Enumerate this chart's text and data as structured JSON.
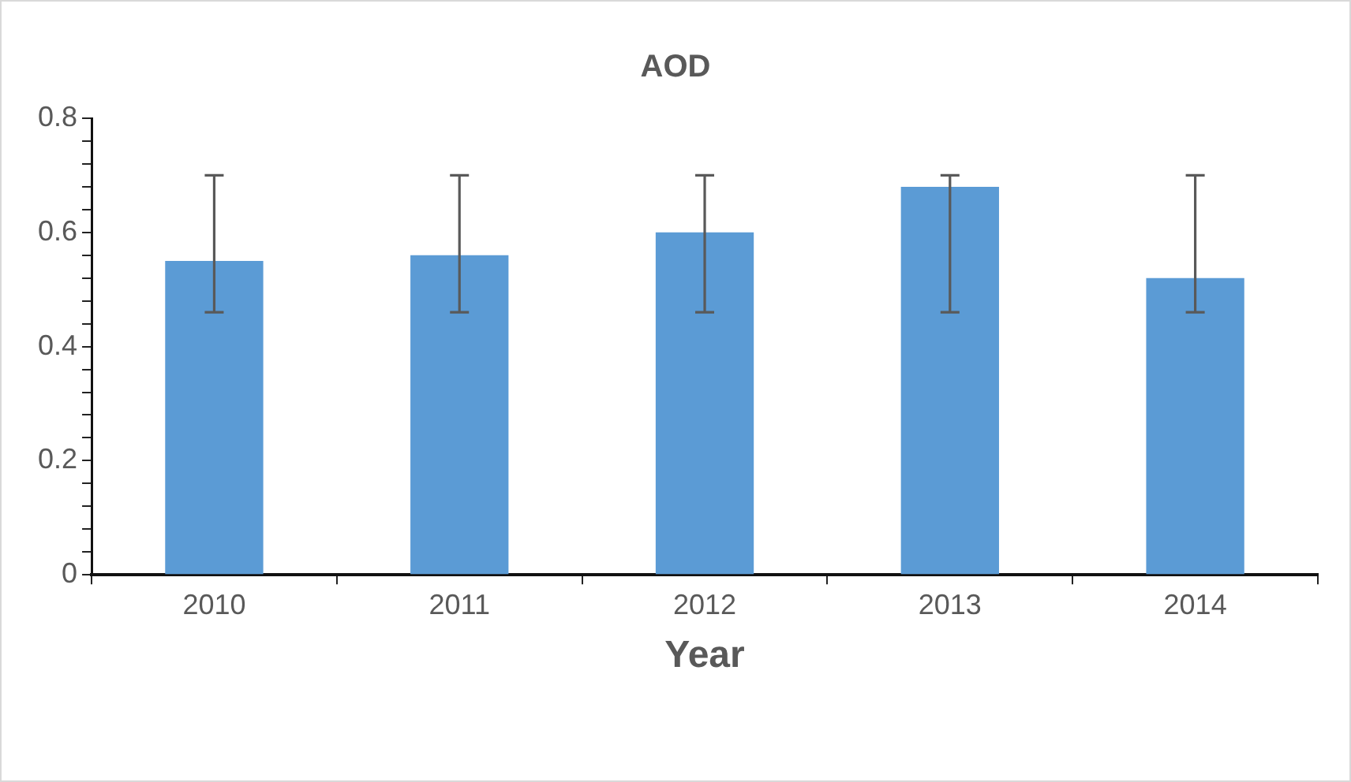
{
  "chart_data": {
    "type": "bar",
    "title": "AOD",
    "xlabel": "Year",
    "categories": [
      "2010",
      "2011",
      "2012",
      "2013",
      "2014"
    ],
    "values": [
      0.55,
      0.56,
      0.6,
      0.68,
      0.52
    ],
    "color": "#5b9bd5",
    "errors": [
      [
        0.46,
        0.7
      ],
      [
        0.46,
        0.7
      ],
      [
        0.46,
        0.7
      ],
      [
        0.46,
        0.7
      ],
      [
        0.46,
        0.7
      ]
    ],
    "ylim": [
      0,
      0.8
    ],
    "yticks": [
      0,
      {
        "value": 0.04,
        "label": null
      },
      {
        "value": 0.08,
        "label": null
      },
      {
        "value": 0.12,
        "label": null
      },
      {
        "value": 0.16,
        "label": null
      },
      0.2,
      {
        "value": 0.24,
        "label": null
      },
      {
        "value": 0.28,
        "label": null
      },
      {
        "value": 0.32,
        "label": null
      },
      {
        "value": 0.36,
        "label": null
      },
      0.4,
      {
        "value": 0.44,
        "label": null
      },
      {
        "value": 0.48,
        "label": null
      },
      {
        "value": 0.52,
        "label": null
      },
      {
        "value": 0.56,
        "label": null
      },
      0.6,
      {
        "value": 0.64,
        "label": null
      },
      {
        "value": 0.68,
        "label": null
      },
      {
        "value": 0.72,
        "label": null
      },
      {
        "value": 0.76,
        "label": null
      },
      0.8
    ],
    "grid": false,
    "legend": false
  }
}
